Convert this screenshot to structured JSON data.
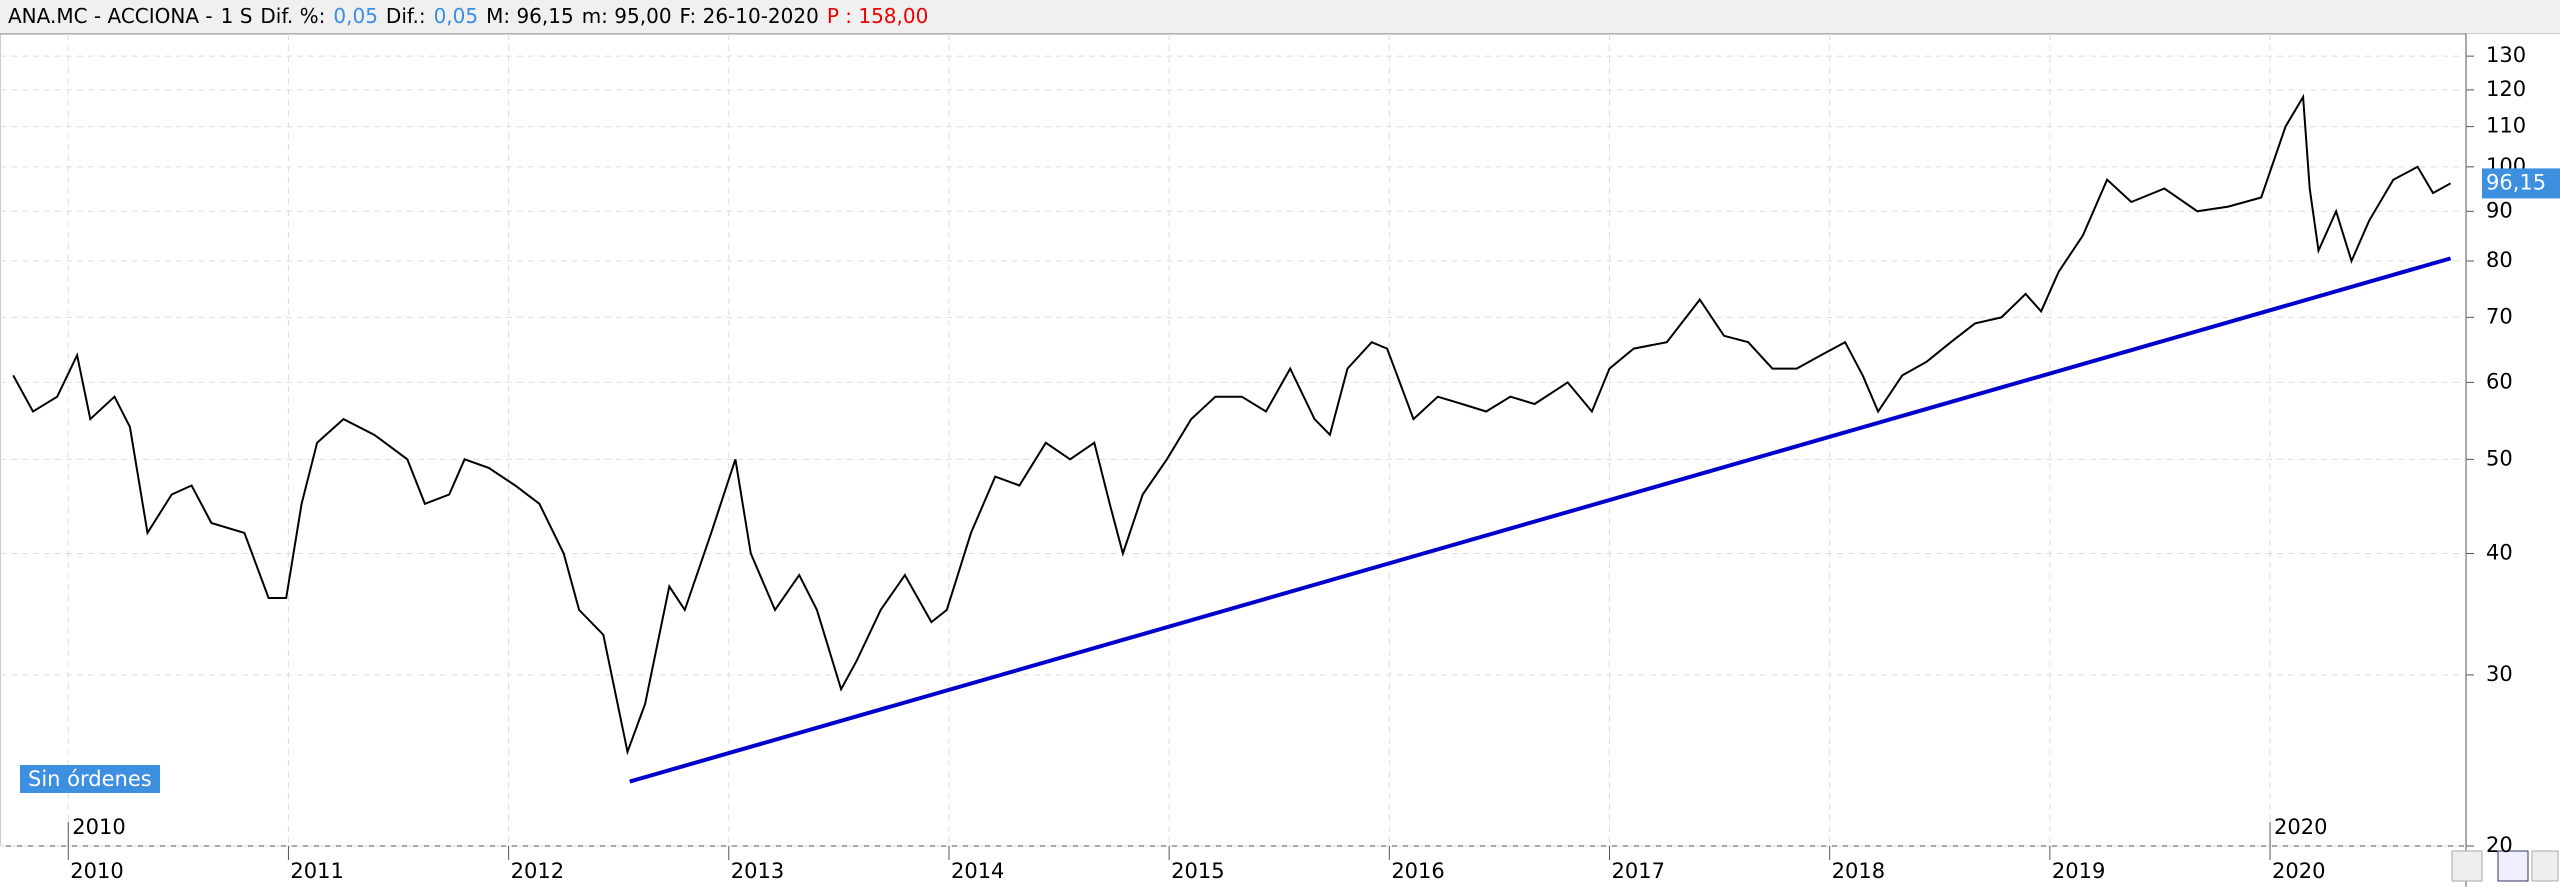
{
  "header": {
    "symbol": "ANA.MC - ACCIONA -",
    "period": "1 S",
    "dif_pct_label": "Dif. %:",
    "dif_pct": "0,05",
    "dif_label": "Dif.:",
    "dif": "0,05",
    "max": "M: 96,15",
    "min": "m: 95,00",
    "date": "F: 26-10-2020",
    "p": "P : 158,00"
  },
  "orders_button": "Sin órdenes",
  "chart_data": {
    "type": "line",
    "log_scale": true,
    "grid": true,
    "x": [
      2009.75,
      2009.84,
      2009.95,
      2010.04,
      2010.1,
      2010.21,
      2010.28,
      2010.36,
      2010.47,
      2010.56,
      2010.65,
      2010.8,
      2010.91,
      2010.99,
      2011.06,
      2011.13,
      2011.25,
      2011.39,
      2011.54,
      2011.62,
      2011.73,
      2011.8,
      2011.91,
      2012.03,
      2012.14,
      2012.25,
      2012.32,
      2012.43,
      2012.54,
      2012.62,
      2012.73,
      2012.8,
      2012.92,
      2013.03,
      2013.1,
      2013.21,
      2013.32,
      2013.4,
      2013.51,
      2013.58,
      2013.69,
      2013.8,
      2013.92,
      2013.99,
      2014.1,
      2014.21,
      2014.32,
      2014.44,
      2014.55,
      2014.66,
      2014.73,
      2014.79,
      2014.88,
      2014.99,
      2015.1,
      2015.21,
      2015.33,
      2015.44,
      2015.55,
      2015.66,
      2015.73,
      2015.81,
      2015.92,
      2015.99,
      2016.11,
      2016.22,
      2016.33,
      2016.44,
      2016.55,
      2016.66,
      2016.81,
      2016.92,
      2017.0,
      2017.11,
      2017.26,
      2017.41,
      2017.52,
      2017.63,
      2017.74,
      2017.85,
      2017.96,
      2018.07,
      2018.15,
      2018.22,
      2018.33,
      2018.44,
      2018.55,
      2018.66,
      2018.78,
      2018.89,
      2018.96,
      2019.04,
      2019.15,
      2019.26,
      2019.37,
      2019.52,
      2019.67,
      2019.81,
      2019.96,
      2020.07,
      2020.15,
      2020.18,
      2020.22,
      2020.3,
      2020.37,
      2020.45,
      2020.56,
      2020.67,
      2020.74,
      2020.82
    ],
    "series": [
      {
        "color": "#000000",
        "values": [
          61,
          56,
          58,
          64,
          55,
          58,
          54,
          42,
          46,
          47,
          43,
          42,
          36,
          36,
          45,
          52,
          55,
          53,
          50,
          45,
          46,
          50,
          49,
          47,
          45,
          40,
          35,
          33,
          25,
          28,
          37,
          35,
          42,
          50,
          40,
          35,
          38,
          35,
          29,
          31,
          35,
          38,
          34,
          35,
          42,
          48,
          47,
          52,
          50,
          52,
          45,
          40,
          46,
          50,
          55,
          58,
          58,
          56,
          62,
          55,
          53,
          62,
          66,
          65,
          55,
          58,
          57,
          56,
          58,
          57,
          60,
          56,
          62,
          65,
          66,
          73,
          67,
          66,
          62,
          62,
          64,
          66,
          61,
          56,
          61,
          63,
          66,
          69,
          70,
          74,
          71,
          78,
          85,
          97,
          92,
          95,
          90,
          91,
          93,
          110,
          118,
          95,
          82,
          90,
          80,
          88,
          97,
          100,
          94,
          96.15
        ]
      }
    ],
    "last_label": "96,15",
    "trendline": {
      "x": [
        2012.55,
        2020.82
      ],
      "y": [
        23.3,
        80.5
      ],
      "color": "#0000cc"
    },
    "xlim": [
      2009.69,
      2020.89
    ],
    "xticks": [
      2010,
      2011,
      2012,
      2013,
      2014,
      2015,
      2016,
      2017,
      2018,
      2019,
      2020
    ],
    "period_markers": [
      2010,
      2020
    ],
    "ylim": [
      20,
      137
    ],
    "yticks": [
      20,
      30,
      40,
      50,
      60,
      70,
      80,
      90,
      100,
      110,
      120,
      130
    ]
  }
}
